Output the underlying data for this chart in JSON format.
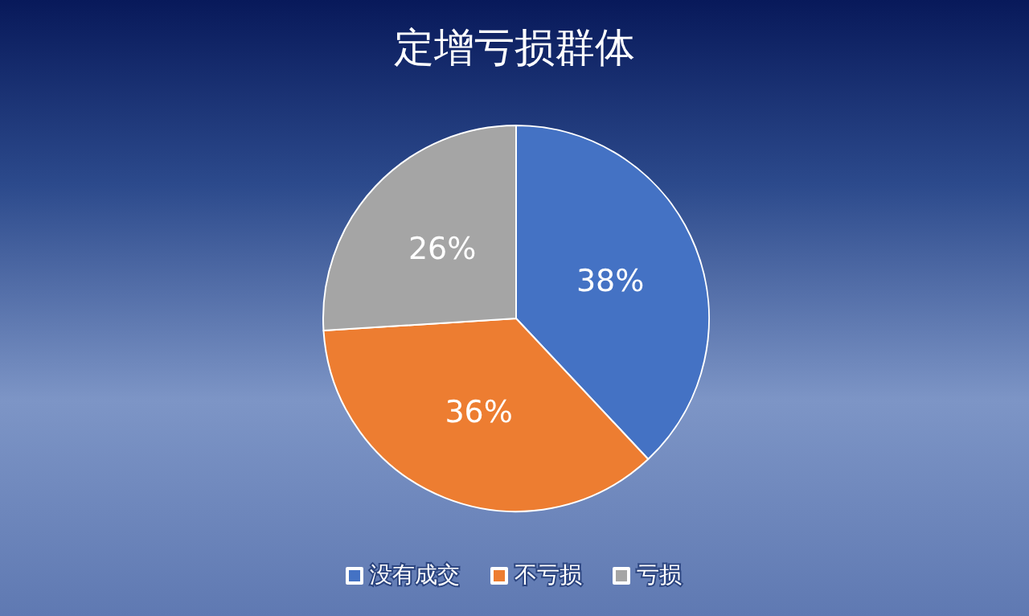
{
  "chart_data": {
    "type": "pie",
    "title": "定增亏损群体",
    "categories": [
      "没有成交",
      "不亏损",
      "亏损"
    ],
    "values": [
      38,
      36,
      26
    ],
    "colors": [
      "#4472c4",
      "#ed7d31",
      "#a5a5a5"
    ],
    "value_labels": [
      "38%",
      "36%",
      "26%"
    ],
    "legend": "bottom"
  }
}
